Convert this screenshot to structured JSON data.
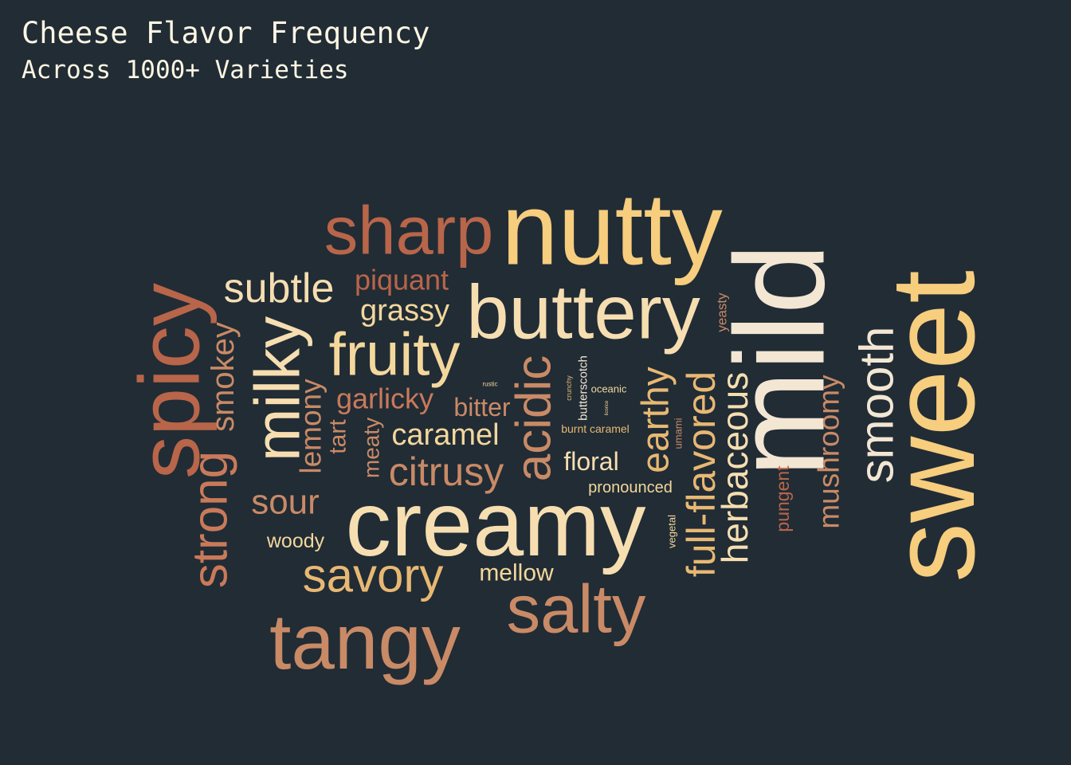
{
  "chart_data": {
    "type": "wordcloud",
    "title": "Cheese Flavor Frequency",
    "subtitle": "Across 1000+ Varieties",
    "background_color": "#212c35",
    "palette": [
      "#b8654a",
      "#c98a66",
      "#e8b873",
      "#f7cd7e",
      "#f6deb1",
      "#f3e6d3"
    ],
    "words": [
      {
        "text": "nutty",
        "weight": 100,
        "color": "#f7cd7e",
        "orientation": "horizontal"
      },
      {
        "text": "sweet",
        "weight": 98,
        "color": "#f7cd7e",
        "orientation": "vertical"
      },
      {
        "text": "mild",
        "weight": 95,
        "color": "#f3e6d3",
        "orientation": "vertical"
      },
      {
        "text": "creamy",
        "weight": 94,
        "color": "#f6deb1",
        "orientation": "horizontal"
      },
      {
        "text": "spicy",
        "weight": 90,
        "color": "#b8654a",
        "orientation": "vertical"
      },
      {
        "text": "buttery",
        "weight": 88,
        "color": "#f6deb1",
        "orientation": "horizontal"
      },
      {
        "text": "tangy",
        "weight": 87,
        "color": "#c98a66",
        "orientation": "horizontal"
      },
      {
        "text": "sharp",
        "weight": 80,
        "color": "#b8654a",
        "orientation": "horizontal"
      },
      {
        "text": "salty",
        "weight": 80,
        "color": "#c98a66",
        "orientation": "horizontal"
      },
      {
        "text": "milky",
        "weight": 70,
        "color": "#f6deb1",
        "orientation": "vertical"
      },
      {
        "text": "fruity",
        "weight": 70,
        "color": "#f3d79c",
        "orientation": "horizontal"
      },
      {
        "text": "acidic",
        "weight": 64,
        "color": "#c98a66",
        "orientation": "vertical"
      },
      {
        "text": "smooth",
        "weight": 62,
        "color": "#f3e6d3",
        "orientation": "vertical"
      },
      {
        "text": "savory",
        "weight": 59,
        "color": "#e8b873",
        "orientation": "horizontal"
      },
      {
        "text": "strong",
        "weight": 58,
        "color": "#c97a5a",
        "orientation": "vertical"
      },
      {
        "text": "subtle",
        "weight": 55,
        "color": "#f6deb1",
        "orientation": "horizontal"
      },
      {
        "text": "full-flavored",
        "weight": 54,
        "color": "#e8b873",
        "orientation": "vertical"
      },
      {
        "text": "earthy",
        "weight": 52,
        "color": "#e8b873",
        "orientation": "vertical"
      },
      {
        "text": "citrusy",
        "weight": 50,
        "color": "#c98a66",
        "orientation": "horizontal"
      },
      {
        "text": "herbaceous",
        "weight": 48,
        "color": "#f6deb1",
        "orientation": "vertical"
      },
      {
        "text": "sour",
        "weight": 46,
        "color": "#c98a66",
        "orientation": "horizontal"
      },
      {
        "text": "smokey",
        "weight": 40,
        "color": "#c98a66",
        "orientation": "vertical"
      },
      {
        "text": "mushroomy",
        "weight": 40,
        "color": "#c98a66",
        "orientation": "vertical"
      },
      {
        "text": "lemony",
        "weight": 38,
        "color": "#c98a66",
        "orientation": "vertical"
      },
      {
        "text": "caramel",
        "weight": 38,
        "color": "#f3d79c",
        "orientation": "horizontal"
      },
      {
        "text": "grassy",
        "weight": 37,
        "color": "#f3d79c",
        "orientation": "horizontal"
      },
      {
        "text": "piquant",
        "weight": 36,
        "color": "#b8654a",
        "orientation": "horizontal"
      },
      {
        "text": "garlicky",
        "weight": 35,
        "color": "#c97a5a",
        "orientation": "horizontal"
      },
      {
        "text": "floral",
        "weight": 32,
        "color": "#f6deb1",
        "orientation": "horizontal"
      },
      {
        "text": "bitter",
        "weight": 32,
        "color": "#c98a66",
        "orientation": "horizontal"
      },
      {
        "text": "mellow",
        "weight": 30,
        "color": "#f3d79c",
        "orientation": "horizontal"
      },
      {
        "text": "tart",
        "weight": 30,
        "color": "#c98a66",
        "orientation": "vertical"
      },
      {
        "text": "meaty",
        "weight": 27,
        "color": "#c98a66",
        "orientation": "vertical"
      },
      {
        "text": "woody",
        "weight": 25,
        "color": "#f3d79c",
        "orientation": "horizontal"
      },
      {
        "text": "pungent",
        "weight": 24,
        "color": "#b8654a",
        "orientation": "vertical"
      },
      {
        "text": "pronounced",
        "weight": 22,
        "color": "#f3d79c",
        "orientation": "horizontal"
      },
      {
        "text": "yeasty",
        "weight": 18,
        "color": "#c98a66",
        "orientation": "vertical"
      },
      {
        "text": "butterscotch",
        "weight": 15,
        "color": "#f3e6d3",
        "orientation": "vertical"
      },
      {
        "text": "burnt caramel",
        "weight": 14,
        "color": "#e8b873",
        "orientation": "horizontal"
      },
      {
        "text": "vegetal",
        "weight": 13,
        "color": "#f3d79c",
        "orientation": "vertical"
      },
      {
        "text": "oceanic",
        "weight": 13,
        "color": "#f3d79c",
        "orientation": "horizontal"
      },
      {
        "text": "umami",
        "weight": 12,
        "color": "#c98a66",
        "orientation": "vertical"
      },
      {
        "text": "crunchy",
        "weight": 8,
        "color": "#e8b873",
        "orientation": "vertical"
      },
      {
        "text": "rustic",
        "weight": 7,
        "color": "#f3d79c",
        "orientation": "horizontal"
      },
      {
        "text": "licorice",
        "weight": 6,
        "color": "#f3d79c",
        "orientation": "vertical"
      }
    ]
  }
}
